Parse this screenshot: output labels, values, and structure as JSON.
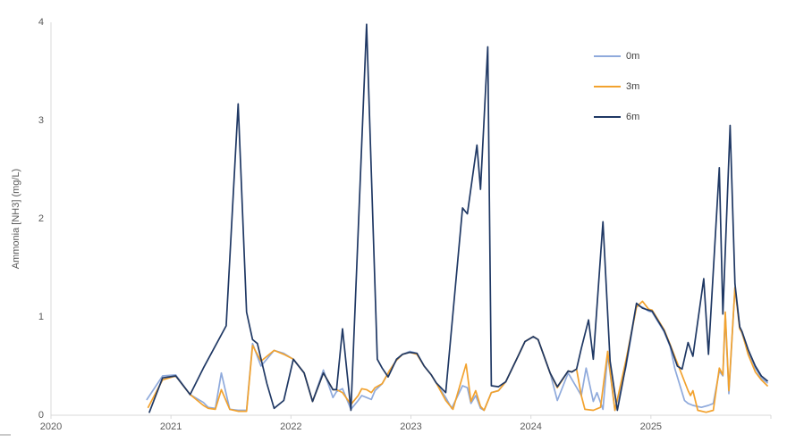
{
  "chart_data": {
    "type": "line",
    "title": "",
    "xlabel": "",
    "ylabel": "Ammonia [NH3] (mg/L)",
    "xlim": [
      2020,
      2026
    ],
    "ylim": [
      0,
      4
    ],
    "x_ticks": [
      2020,
      2021,
      2022,
      2023,
      2024,
      2025
    ],
    "y_ticks": [
      0,
      1,
      2,
      3,
      4
    ],
    "grid": false,
    "legend_position": "inside-top-right",
    "series": [
      {
        "name": "0m",
        "color": "#8FAADC",
        "points": [
          [
            2020.8,
            0.16
          ],
          [
            2020.93,
            0.4
          ],
          [
            2021.04,
            0.41
          ],
          [
            2021.16,
            0.21
          ],
          [
            2021.27,
            0.13
          ],
          [
            2021.31,
            0.08
          ],
          [
            2021.37,
            0.07
          ],
          [
            2021.42,
            0.43
          ],
          [
            2021.49,
            0.06
          ],
          [
            2021.56,
            0.05
          ],
          [
            2021.63,
            0.05
          ],
          [
            2021.68,
            0.73
          ],
          [
            2021.75,
            0.5
          ],
          [
            2021.86,
            0.66
          ],
          [
            2021.94,
            0.63
          ],
          [
            2022.02,
            0.57
          ],
          [
            2022.11,
            0.43
          ],
          [
            2022.18,
            0.14
          ],
          [
            2022.27,
            0.46
          ],
          [
            2022.35,
            0.18
          ],
          [
            2022.38,
            0.24
          ],
          [
            2022.43,
            0.27
          ],
          [
            2022.5,
            0.06
          ],
          [
            2022.56,
            0.15
          ],
          [
            2022.59,
            0.2
          ],
          [
            2022.63,
            0.18
          ],
          [
            2022.67,
            0.16
          ],
          [
            2022.7,
            0.25
          ],
          [
            2022.76,
            0.32
          ],
          [
            2022.82,
            0.45
          ],
          [
            2022.88,
            0.56
          ],
          [
            2022.93,
            0.62
          ],
          [
            2022.99,
            0.65
          ],
          [
            2023.05,
            0.63
          ],
          [
            2023.11,
            0.5
          ],
          [
            2023.17,
            0.41
          ],
          [
            2023.21,
            0.33
          ],
          [
            2023.29,
            0.18
          ],
          [
            2023.34,
            0.07
          ],
          [
            2023.43,
            0.3
          ],
          [
            2023.47,
            0.28
          ],
          [
            2023.5,
            0.12
          ],
          [
            2023.54,
            0.2
          ],
          [
            2023.58,
            0.07
          ],
          [
            2023.61,
            0.05
          ],
          [
            2023.67,
            0.23
          ],
          [
            2023.73,
            0.25
          ],
          [
            2023.79,
            0.34
          ],
          [
            2023.9,
            0.62
          ],
          [
            2023.95,
            0.75
          ],
          [
            2024.02,
            0.8
          ],
          [
            2024.06,
            0.77
          ],
          [
            2024.16,
            0.43
          ],
          [
            2024.22,
            0.15
          ],
          [
            2024.31,
            0.43
          ],
          [
            2024.42,
            0.2
          ],
          [
            2024.46,
            0.48
          ],
          [
            2024.52,
            0.14
          ],
          [
            2024.55,
            0.23
          ],
          [
            2024.6,
            0.06
          ],
          [
            2024.64,
            0.62
          ],
          [
            2024.7,
            0.05
          ],
          [
            2024.79,
            0.48
          ],
          [
            2024.88,
            1.12
          ],
          [
            2024.93,
            1.1
          ],
          [
            2024.98,
            1.06
          ],
          [
            2025.01,
            1.05
          ],
          [
            2025.11,
            0.85
          ],
          [
            2025.16,
            0.7
          ],
          [
            2025.2,
            0.47
          ],
          [
            2025.28,
            0.15
          ],
          [
            2025.31,
            0.12
          ],
          [
            2025.35,
            0.1
          ],
          [
            2025.42,
            0.08
          ],
          [
            2025.48,
            0.1
          ],
          [
            2025.52,
            0.12
          ],
          [
            2025.57,
            0.45
          ],
          [
            2025.6,
            0.4
          ],
          [
            2025.62,
            1.02
          ],
          [
            2025.65,
            0.22
          ],
          [
            2025.7,
            1.3
          ],
          [
            2025.74,
            0.9
          ],
          [
            2025.81,
            0.65
          ],
          [
            2025.87,
            0.48
          ],
          [
            2025.92,
            0.38
          ],
          [
            2025.97,
            0.33
          ]
        ]
      },
      {
        "name": "3m",
        "color": "#F2A22E",
        "points": [
          [
            2020.81,
            0.08
          ],
          [
            2020.93,
            0.36
          ],
          [
            2021.04,
            0.4
          ],
          [
            2021.16,
            0.21
          ],
          [
            2021.27,
            0.1
          ],
          [
            2021.31,
            0.07
          ],
          [
            2021.37,
            0.06
          ],
          [
            2021.42,
            0.26
          ],
          [
            2021.49,
            0.06
          ],
          [
            2021.56,
            0.04
          ],
          [
            2021.63,
            0.04
          ],
          [
            2021.68,
            0.71
          ],
          [
            2021.75,
            0.55
          ],
          [
            2021.86,
            0.66
          ],
          [
            2021.94,
            0.62
          ],
          [
            2022.02,
            0.57
          ],
          [
            2022.11,
            0.43
          ],
          [
            2022.18,
            0.14
          ],
          [
            2022.27,
            0.43
          ],
          [
            2022.35,
            0.26
          ],
          [
            2022.38,
            0.26
          ],
          [
            2022.43,
            0.23
          ],
          [
            2022.5,
            0.11
          ],
          [
            2022.56,
            0.2
          ],
          [
            2022.59,
            0.27
          ],
          [
            2022.63,
            0.26
          ],
          [
            2022.67,
            0.23
          ],
          [
            2022.7,
            0.28
          ],
          [
            2022.76,
            0.32
          ],
          [
            2022.82,
            0.45
          ],
          [
            2022.88,
            0.56
          ],
          [
            2022.93,
            0.62
          ],
          [
            2022.99,
            0.64
          ],
          [
            2023.05,
            0.62
          ],
          [
            2023.11,
            0.5
          ],
          [
            2023.17,
            0.41
          ],
          [
            2023.21,
            0.33
          ],
          [
            2023.29,
            0.15
          ],
          [
            2023.35,
            0.06
          ],
          [
            2023.46,
            0.52
          ],
          [
            2023.5,
            0.14
          ],
          [
            2023.54,
            0.25
          ],
          [
            2023.58,
            0.09
          ],
          [
            2023.61,
            0.05
          ],
          [
            2023.67,
            0.23
          ],
          [
            2023.73,
            0.25
          ],
          [
            2023.79,
            0.34
          ],
          [
            2023.9,
            0.62
          ],
          [
            2023.95,
            0.75
          ],
          [
            2024.02,
            0.8
          ],
          [
            2024.06,
            0.77
          ],
          [
            2024.16,
            0.43
          ],
          [
            2024.22,
            0.28
          ],
          [
            2024.31,
            0.45
          ],
          [
            2024.34,
            0.44
          ],
          [
            2024.38,
            0.47
          ],
          [
            2024.42,
            0.2
          ],
          [
            2024.45,
            0.06
          ],
          [
            2024.52,
            0.05
          ],
          [
            2024.58,
            0.08
          ],
          [
            2024.64,
            0.65
          ],
          [
            2024.7,
            0.05
          ],
          [
            2024.79,
            0.55
          ],
          [
            2024.88,
            1.1
          ],
          [
            2024.93,
            1.16
          ],
          [
            2024.98,
            1.08
          ],
          [
            2025.01,
            1.07
          ],
          [
            2025.11,
            0.87
          ],
          [
            2025.16,
            0.72
          ],
          [
            2025.22,
            0.53
          ],
          [
            2025.31,
            0.25
          ],
          [
            2025.33,
            0.2
          ],
          [
            2025.35,
            0.25
          ],
          [
            2025.39,
            0.05
          ],
          [
            2025.46,
            0.03
          ],
          [
            2025.52,
            0.05
          ],
          [
            2025.57,
            0.48
          ],
          [
            2025.6,
            0.41
          ],
          [
            2025.62,
            1.05
          ],
          [
            2025.65,
            0.25
          ],
          [
            2025.7,
            1.3
          ],
          [
            2025.74,
            0.88
          ],
          [
            2025.76,
            0.84
          ],
          [
            2025.81,
            0.62
          ],
          [
            2025.87,
            0.44
          ],
          [
            2025.92,
            0.36
          ],
          [
            2025.97,
            0.3
          ]
        ]
      },
      {
        "name": "6m",
        "color": "#1F3864",
        "points": [
          [
            2020.82,
            0.03
          ],
          [
            2020.93,
            0.38
          ],
          [
            2021.04,
            0.4
          ],
          [
            2021.16,
            0.21
          ],
          [
            2021.27,
            0.48
          ],
          [
            2021.46,
            0.91
          ],
          [
            2021.56,
            3.17
          ],
          [
            2021.63,
            1.05
          ],
          [
            2021.68,
            0.77
          ],
          [
            2021.72,
            0.73
          ],
          [
            2021.8,
            0.32
          ],
          [
            2021.86,
            0.07
          ],
          [
            2021.94,
            0.15
          ],
          [
            2022.02,
            0.57
          ],
          [
            2022.11,
            0.43
          ],
          [
            2022.18,
            0.14
          ],
          [
            2022.27,
            0.43
          ],
          [
            2022.35,
            0.26
          ],
          [
            2022.38,
            0.26
          ],
          [
            2022.43,
            0.88
          ],
          [
            2022.5,
            0.05
          ],
          [
            2022.63,
            3.98
          ],
          [
            2022.72,
            0.57
          ],
          [
            2022.76,
            0.48
          ],
          [
            2022.81,
            0.39
          ],
          [
            2022.88,
            0.57
          ],
          [
            2022.93,
            0.62
          ],
          [
            2022.99,
            0.64
          ],
          [
            2023.05,
            0.63
          ],
          [
            2023.11,
            0.5
          ],
          [
            2023.17,
            0.41
          ],
          [
            2023.21,
            0.33
          ],
          [
            2023.29,
            0.23
          ],
          [
            2023.43,
            2.11
          ],
          [
            2023.47,
            2.05
          ],
          [
            2023.55,
            2.75
          ],
          [
            2023.58,
            2.3
          ],
          [
            2023.64,
            3.75
          ],
          [
            2023.67,
            0.3
          ],
          [
            2023.73,
            0.29
          ],
          [
            2023.79,
            0.34
          ],
          [
            2023.9,
            0.62
          ],
          [
            2023.95,
            0.75
          ],
          [
            2024.02,
            0.8
          ],
          [
            2024.06,
            0.77
          ],
          [
            2024.16,
            0.43
          ],
          [
            2024.22,
            0.29
          ],
          [
            2024.31,
            0.45
          ],
          [
            2024.34,
            0.44
          ],
          [
            2024.38,
            0.47
          ],
          [
            2024.42,
            0.68
          ],
          [
            2024.48,
            0.97
          ],
          [
            2024.52,
            0.57
          ],
          [
            2024.6,
            1.97
          ],
          [
            2024.66,
            0.55
          ],
          [
            2024.72,
            0.05
          ],
          [
            2024.79,
            0.5
          ],
          [
            2024.88,
            1.14
          ],
          [
            2024.93,
            1.09
          ],
          [
            2024.98,
            1.07
          ],
          [
            2025.01,
            1.06
          ],
          [
            2025.11,
            0.86
          ],
          [
            2025.16,
            0.71
          ],
          [
            2025.22,
            0.5
          ],
          [
            2025.26,
            0.47
          ],
          [
            2025.31,
            0.74
          ],
          [
            2025.35,
            0.6
          ],
          [
            2025.44,
            1.39
          ],
          [
            2025.48,
            0.62
          ],
          [
            2025.57,
            2.52
          ],
          [
            2025.6,
            1.03
          ],
          [
            2025.66,
            2.95
          ],
          [
            2025.7,
            1.34
          ],
          [
            2025.74,
            0.9
          ],
          [
            2025.76,
            0.85
          ],
          [
            2025.81,
            0.67
          ],
          [
            2025.87,
            0.5
          ],
          [
            2025.92,
            0.4
          ],
          [
            2025.97,
            0.35
          ]
        ]
      }
    ]
  },
  "colors": {
    "background": "#FFFFFF",
    "axis_line": "#D9D9D9",
    "tick_text": "#595959",
    "legend_text": "#404040"
  }
}
